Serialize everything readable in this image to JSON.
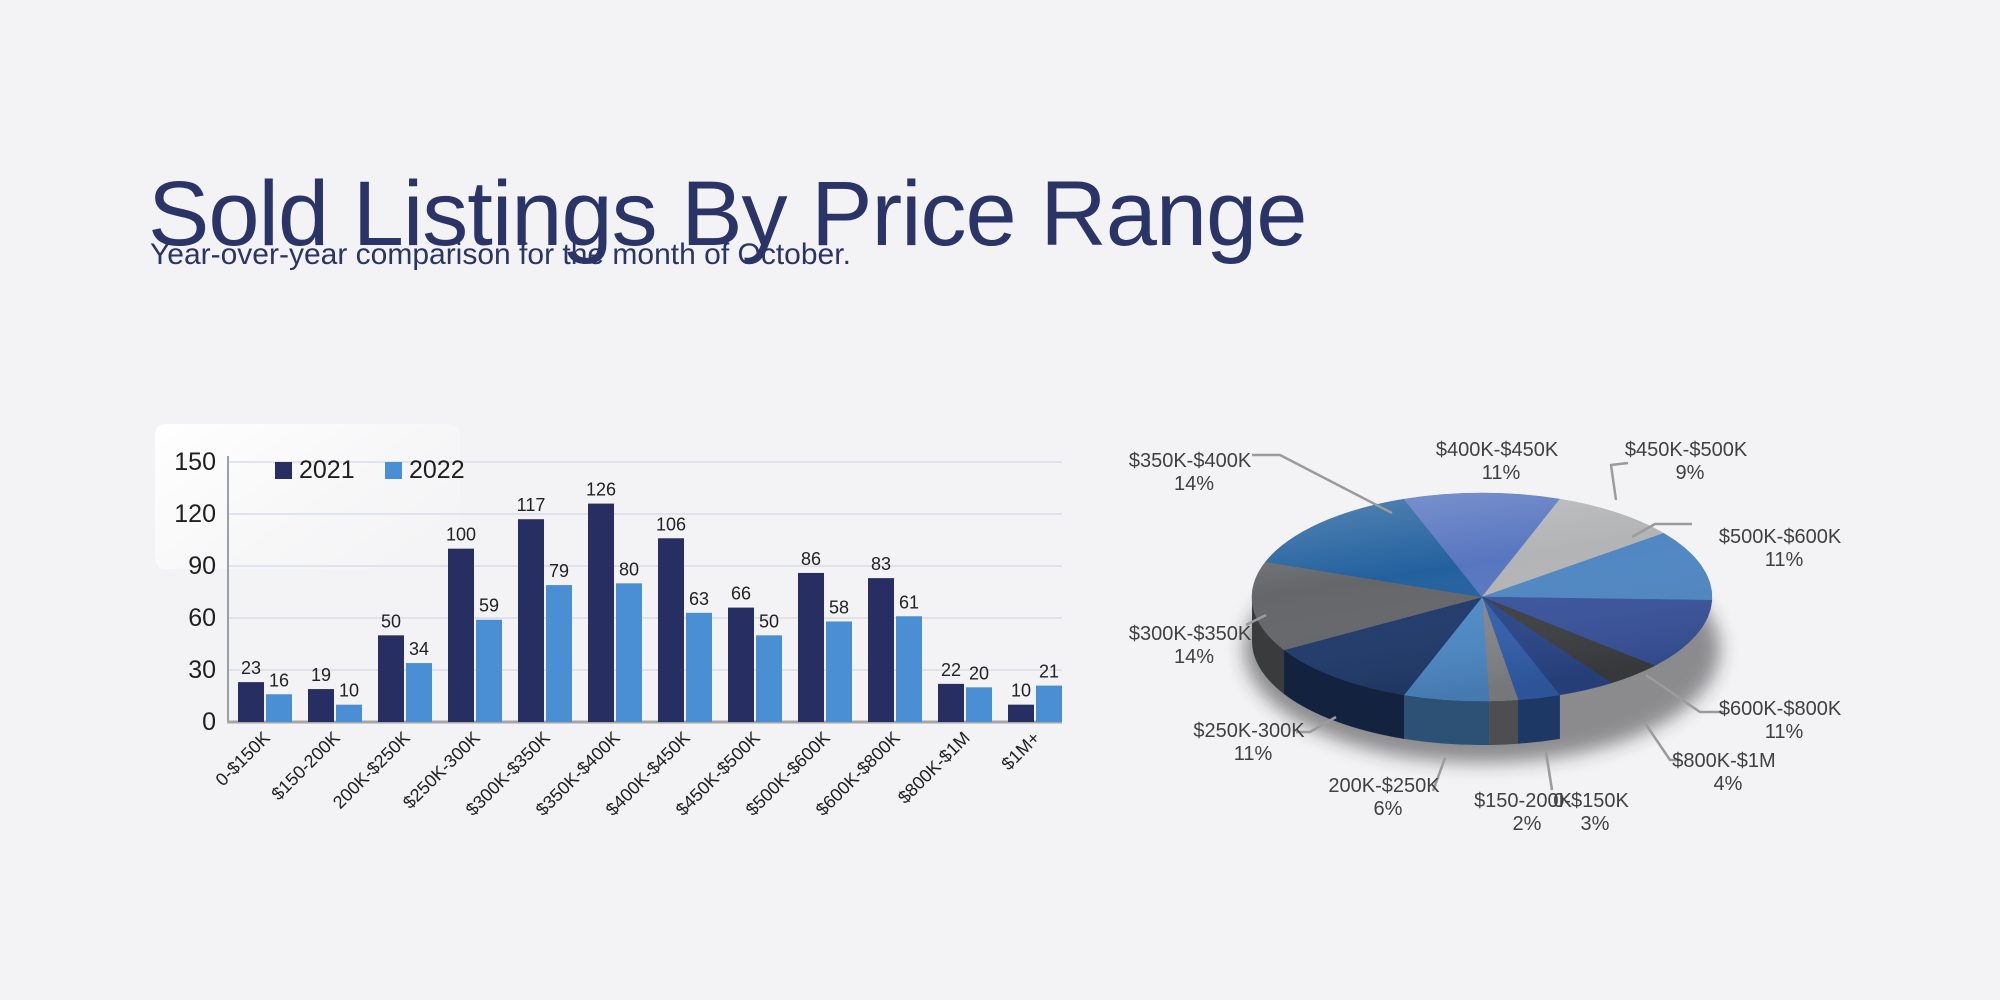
{
  "page": {
    "background": "#F3F3F5",
    "accent_color": "#2A3467"
  },
  "header": {
    "title": "Sold Listings By Price Range",
    "subtitle": "Year-over-year comparison for the month of October."
  },
  "chart_data": [
    {
      "type": "bar",
      "title": "",
      "legend_position": "top-left",
      "grid": true,
      "ylim": [
        0,
        150
      ],
      "yticks": [
        0,
        30,
        60,
        90,
        120,
        150
      ],
      "show_value_labels": true,
      "categories": [
        "0-$150K",
        "$150-200K",
        "200K-$250K",
        "$250K-300K",
        "$300K-$350K",
        "$350K-$400K",
        "$400K-$450K",
        "$450K-$500K",
        "$500K-$600K",
        "$600K-$800K",
        "$800K-$1M",
        "$1M+"
      ],
      "series": [
        {
          "name": "2021",
          "color": "#272F62",
          "values": [
            23,
            19,
            50,
            100,
            117,
            126,
            106,
            66,
            86,
            83,
            22,
            10
          ]
        },
        {
          "name": "2022",
          "color": "#4A8FD3",
          "values": [
            16,
            10,
            34,
            59,
            79,
            80,
            63,
            50,
            58,
            61,
            20,
            21
          ]
        }
      ],
      "colors": {
        "gridline": "#D9DDE8",
        "axis": "#9AA0A6",
        "baseline": "#A6A6A6",
        "tick_text": "#1F1F1F",
        "value_text": "#222222"
      }
    },
    {
      "type": "pie",
      "style": "3d",
      "label_text_color": "#404040",
      "leader_line_color": "#9B9B9B",
      "slices": [
        {
          "label": "0-$150K",
          "percent": 3,
          "color": "#3360AE",
          "show_label": true
        },
        {
          "label": "$150-200K",
          "percent": 2,
          "color": "#85878A",
          "show_label": true
        },
        {
          "label": "200K-$250K",
          "percent": 6,
          "color": "#4E8BC8",
          "show_label": true
        },
        {
          "label": "$250K-300K",
          "percent": 11,
          "color": "#203A6B",
          "show_label": true
        },
        {
          "label": "$300K-$350K",
          "percent": 14,
          "color": "#64666A",
          "show_label": true
        },
        {
          "label": "$350K-$400K",
          "percent": 14,
          "color": "#23619E",
          "show_label": true
        },
        {
          "label": "$400K-$450K",
          "percent": 11,
          "color": "#5876C0",
          "show_label": true
        },
        {
          "label": "$450K-$500K",
          "percent": 9,
          "color": "#B3B4B6",
          "show_label": true
        },
        {
          "label": "$500K-$600K",
          "percent": 11,
          "color": "#4F87C3",
          "show_label": true
        },
        {
          "label": "$600K-$800K",
          "percent": 11,
          "color": "#3A549D",
          "show_label": true
        },
        {
          "label": "$800K-$1M",
          "percent": 4,
          "color": "#3E4043",
          "show_label": true
        },
        {
          "label": "$1M+",
          "percent": 4,
          "color": "#2B4789",
          "show_label": false
        }
      ]
    }
  ]
}
